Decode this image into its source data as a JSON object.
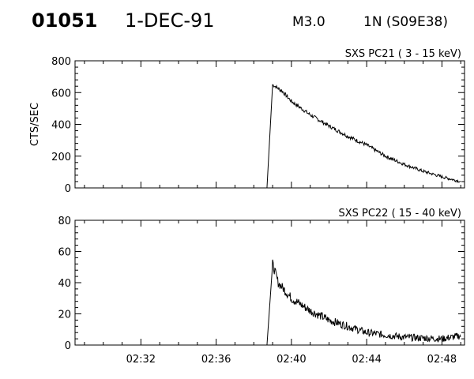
{
  "header": {
    "event_id": "01051",
    "date": "1-DEC-91",
    "goes_class": "M3.0",
    "optical_region": "1N (S09E38)"
  },
  "chart_data": [
    {
      "type": "line",
      "title": "SXS PC21  (  3 - 15 keV)",
      "ylabel": "CTS/SEC",
      "xlabel": "",
      "ylim": [
        0,
        800
      ],
      "yticks": [
        0,
        200,
        400,
        600,
        800
      ],
      "yticklabels": [
        "0",
        "200",
        "400",
        "600",
        "800"
      ],
      "xlim_minutes": [
        148.5,
        169.2
      ],
      "xticks_minutes": [
        152,
        156,
        160,
        164,
        168
      ],
      "xticklabels": [],
      "grid": false,
      "series": [
        {
          "values": [
            {
              "t": "02:28",
              "y": 0
            },
            {
              "t": "02:38",
              "y": 0
            },
            {
              "t": "02:38.7",
              "y": 0
            },
            {
              "t": "02:39",
              "y": 650
            },
            {
              "t": "02:39.5",
              "y": 610
            },
            {
              "t": "02:40",
              "y": 545
            },
            {
              "t": "02:41",
              "y": 460
            },
            {
              "t": "02:42",
              "y": 390
            },
            {
              "t": "02:43",
              "y": 325
            },
            {
              "t": "02:44",
              "y": 270
            },
            {
              "t": "02:45",
              "y": 200
            },
            {
              "t": "02:46",
              "y": 148
            },
            {
              "t": "02:47",
              "y": 105
            },
            {
              "t": "02:48",
              "y": 70
            },
            {
              "t": "02:49",
              "y": 40
            }
          ],
          "noise": 12
        }
      ]
    },
    {
      "type": "line",
      "title": "SXS PC22  ( 15 - 40 keV)",
      "ylabel": "",
      "xlabel": "",
      "ylim": [
        0,
        80
      ],
      "yticks": [
        0,
        20,
        40,
        60,
        80
      ],
      "yticklabels": [
        "0",
        "20",
        "40",
        "60",
        "80"
      ],
      "xlim_minutes": [
        148.5,
        169.2
      ],
      "xticks_minutes": [
        152,
        156,
        160,
        164,
        168
      ],
      "xticklabels": [
        "02:32",
        "02:36",
        "02:40",
        "02:44",
        "02:48"
      ],
      "grid": false,
      "series": [
        {
          "values": [
            {
              "t": "02:28",
              "y": 0
            },
            {
              "t": "02:38",
              "y": 0
            },
            {
              "t": "02:38.7",
              "y": 0
            },
            {
              "t": "02:39",
              "y": 52
            },
            {
              "t": "02:39.3",
              "y": 40
            },
            {
              "t": "02:40",
              "y": 30
            },
            {
              "t": "02:41",
              "y": 22
            },
            {
              "t": "02:42",
              "y": 16
            },
            {
              "t": "02:43",
              "y": 12
            },
            {
              "t": "02:44",
              "y": 8
            },
            {
              "t": "02:46",
              "y": 5
            },
            {
              "t": "02:48",
              "y": 4
            },
            {
              "t": "02:49",
              "y": 6
            }
          ],
          "noise": 3
        }
      ]
    }
  ]
}
